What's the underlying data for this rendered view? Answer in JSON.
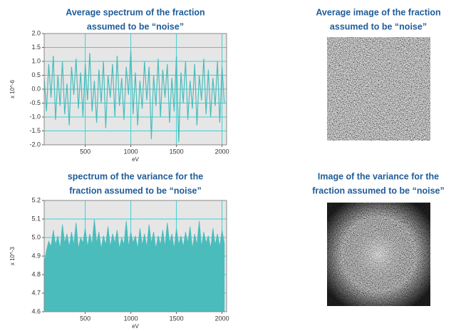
{
  "chart_data": [
    {
      "type": "line",
      "title": [
        "Average spectrum of the fraction",
        "assumed to be “noise”"
      ],
      "xlabel": "eV",
      "ylabel": "x 10^-6",
      "color": "#4bbcbc",
      "grid": true,
      "xlim": [
        50,
        2050
      ],
      "xticks": [
        500,
        1000,
        1500,
        2000
      ],
      "ylim": [
        -2,
        2
      ],
      "yticks": [
        {
          "value": -2,
          "label": "-2.0"
        },
        -1.5,
        {
          "value": -1,
          "label": "-1.0"
        },
        -0.5,
        {
          "value": 0,
          "label": "0.0"
        },
        0.5,
        {
          "value": 1,
          "label": "1.0"
        },
        1.5,
        {
          "value": 2,
          "label": "2.0"
        }
      ],
      "x": [
        50,
        75,
        100,
        125,
        150,
        175,
        200,
        225,
        250,
        275,
        300,
        325,
        350,
        375,
        400,
        425,
        450,
        475,
        500,
        525,
        550,
        575,
        600,
        625,
        650,
        675,
        700,
        725,
        750,
        775,
        800,
        825,
        850,
        875,
        900,
        925,
        950,
        975,
        1000,
        1025,
        1050,
        1075,
        1100,
        1125,
        1150,
        1175,
        1200,
        1225,
        1250,
        1275,
        1300,
        1325,
        1350,
        1375,
        1400,
        1425,
        1450,
        1475,
        1500,
        1525,
        1550,
        1575,
        1600,
        1625,
        1650,
        1675,
        1700,
        1725,
        1750,
        1775,
        1800,
        1825,
        1850,
        1875,
        1900,
        1925,
        1950,
        1975,
        2000,
        2025
      ],
      "values": [
        0.4,
        -0.8,
        0.9,
        -0.3,
        1.2,
        -1.1,
        0.5,
        -0.6,
        1.0,
        -0.9,
        0.2,
        -1.3,
        0.8,
        -0.2,
        1.1,
        -0.7,
        0.6,
        -1.0,
        0.9,
        -0.4,
        1.3,
        -0.8,
        0.3,
        -1.2,
        0.7,
        -0.5,
        1.0,
        -1.4,
        0.5,
        -0.3,
        0.9,
        -1.0,
        1.2,
        -0.6,
        0.4,
        -1.1,
        0.8,
        -0.2,
        1.4,
        -0.9,
        0.6,
        -1.3,
        0.3,
        -0.7,
        1.0,
        -0.4,
        0.8,
        -1.8,
        0.5,
        -0.6,
        1.1,
        -1.0,
        0.7,
        -0.3,
        0.9,
        -1.2,
        0.4,
        -0.8,
        1.2,
        -1.9,
        0.6,
        -0.5,
        1.0,
        -1.1,
        0.3,
        -0.7,
        0.9,
        -1.3,
        0.5,
        -0.4,
        1.1,
        -0.9,
        0.7,
        -1.0,
        0.4,
        -0.6,
        1.0,
        -1.2,
        0.8,
        -0.5
      ]
    },
    {
      "type": "area",
      "title": [
        "spectrum of the variance for the",
        "fraction assumed to be “noise”"
      ],
      "xlabel": "eV",
      "ylabel": "x 10^-3",
      "color": "#4bbcbc",
      "grid": true,
      "xlim": [
        50,
        2050
      ],
      "xticks": [
        500,
        1000,
        1500,
        2000
      ],
      "ylim": [
        4.6,
        5.2
      ],
      "yticks": [
        4.6,
        4.7,
        4.8,
        4.9,
        {
          "value": 5,
          "label": "5.0"
        },
        5.1,
        5.2
      ],
      "x": [
        50,
        75,
        100,
        125,
        150,
        175,
        200,
        225,
        250,
        275,
        300,
        325,
        350,
        375,
        400,
        425,
        450,
        475,
        500,
        525,
        550,
        575,
        600,
        625,
        650,
        675,
        700,
        725,
        750,
        775,
        800,
        825,
        850,
        875,
        900,
        925,
        950,
        975,
        1000,
        1025,
        1050,
        1075,
        1100,
        1125,
        1150,
        1175,
        1200,
        1225,
        1250,
        1275,
        1300,
        1325,
        1350,
        1375,
        1400,
        1425,
        1450,
        1475,
        1500,
        1525,
        1550,
        1575,
        1600,
        1625,
        1650,
        1675,
        1700,
        1725,
        1750,
        1775,
        1800,
        1825,
        1850,
        1875,
        1900,
        1925,
        1950,
        1975,
        2000,
        2025
      ],
      "values": [
        4.86,
        4.93,
        4.98,
        4.95,
        5.04,
        4.96,
        5.01,
        4.94,
        5.07,
        4.97,
        5.02,
        4.95,
        5.03,
        4.96,
        5.08,
        4.94,
        5.0,
        4.97,
        5.05,
        4.95,
        5.02,
        4.96,
        5.1,
        4.97,
        5.03,
        4.94,
        5.01,
        4.96,
        5.06,
        4.95,
        5.02,
        4.97,
        5.04,
        4.94,
        5.0,
        4.96,
        5.09,
        4.95,
        5.03,
        4.97,
        5.01,
        4.94,
        5.05,
        4.96,
        5.02,
        4.95,
        5.07,
        4.97,
        5.03,
        4.94,
        5.01,
        4.96,
        5.04,
        4.95,
        5.08,
        4.97,
        5.02,
        4.94,
        5.05,
        4.96,
        5.01,
        4.95,
        5.03,
        4.97,
        5.06,
        4.94,
        5.02,
        4.96,
        5.09,
        4.95,
        5.03,
        4.97,
        5.01,
        4.94,
        5.05,
        4.96,
        5.02,
        4.95,
        5.04,
        4.97
      ]
    }
  ],
  "images": [
    {
      "title": [
        "Average image  of the fraction",
        "assumed to be “noise”"
      ]
    },
    {
      "title": [
        "Image of the variance for the",
        "fraction assumed to be “noise”"
      ]
    }
  ]
}
